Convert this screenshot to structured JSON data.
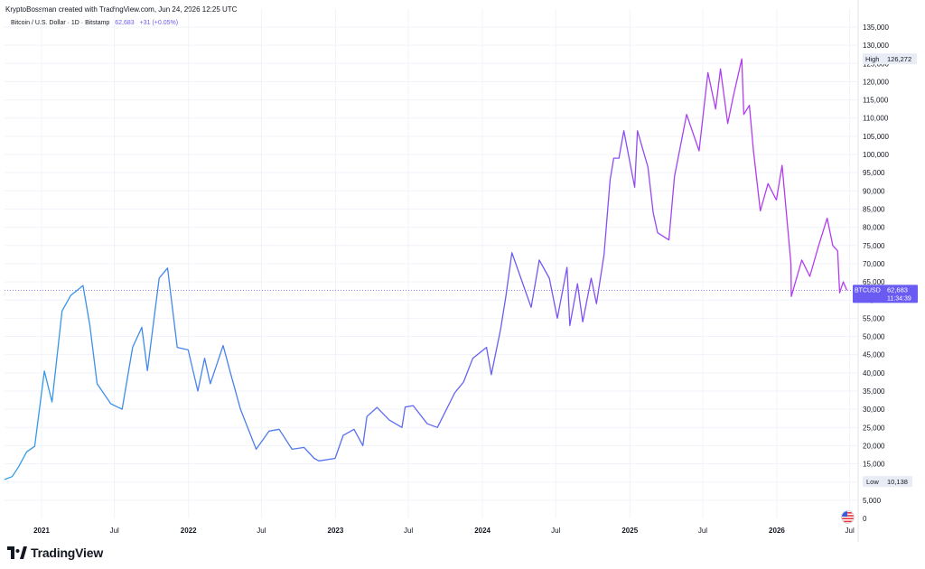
{
  "header": {
    "credit": "KryptoBossman created with TradingView.com, Jun 24, 2026 12:25 UTC",
    "symbol_desc": "Bitcoin / U.S. Dollar · 1D · Bitstamp",
    "last_value": "62,683",
    "change": "+31 (+0.05%)"
  },
  "footer": {
    "brand": "TradingView"
  },
  "price_badge": {
    "label": "BTCUSD",
    "value": "62,683",
    "countdown": "11:34:39"
  },
  "high_badge": {
    "label": "High",
    "value": "126,272"
  },
  "low_badge": {
    "label": "Low",
    "value": "10,138"
  },
  "colors": {
    "line_start": "#2f9ee8",
    "line_mid": "#6a5cf2",
    "line_end": "#b23df0",
    "badge": "#6a5cf2",
    "grid": "#f0f3fa"
  },
  "icons": [
    "tradingview-logo-icon",
    "us-flag-icon"
  ],
  "chart_data": {
    "type": "line",
    "title": "Bitcoin / U.S. Dollar · 1D · Bitstamp",
    "xlabel": "",
    "ylabel": "",
    "y_ticks": [
      0,
      5000,
      10000,
      15000,
      20000,
      25000,
      30000,
      35000,
      40000,
      45000,
      50000,
      55000,
      60000,
      65000,
      70000,
      75000,
      80000,
      85000,
      90000,
      95000,
      100000,
      105000,
      110000,
      115000,
      120000,
      125000,
      130000,
      135000
    ],
    "x_ticks": [
      "2021",
      "Jul",
      "2022",
      "Jul",
      "2023",
      "Jul",
      "2024",
      "Jul",
      "2025",
      "Jul",
      "2026",
      "Jul"
    ],
    "x_tick_dates": [
      "2021-01-01",
      "2021-07-01",
      "2022-01-01",
      "2022-07-01",
      "2023-01-01",
      "2023-07-01",
      "2024-01-01",
      "2024-07-01",
      "2025-01-01",
      "2025-07-01",
      "2026-01-01",
      "2026-07-01"
    ],
    "x_range": [
      "2020-10-01",
      "2026-07-22"
    ],
    "ylim": [
      0,
      135000
    ],
    "grid": true,
    "series": [
      {
        "x": [
          "2020-10-01",
          "2020-10-20",
          "2020-11-05",
          "2020-11-25",
          "2020-12-15",
          "2021-01-08",
          "2021-01-27",
          "2021-02-21",
          "2021-03-14",
          "2021-04-14",
          "2021-05-01",
          "2021-05-19",
          "2021-06-22",
          "2021-07-20",
          "2021-08-15",
          "2021-09-07",
          "2021-09-21",
          "2021-10-20",
          "2021-11-10",
          "2021-12-04",
          "2021-12-31",
          "2022-01-24",
          "2022-02-10",
          "2022-02-24",
          "2022-03-28",
          "2022-04-15",
          "2022-05-10",
          "2022-06-18",
          "2022-07-20",
          "2022-08-14",
          "2022-09-15",
          "2022-10-15",
          "2022-11-09",
          "2022-11-21",
          "2022-12-31",
          "2023-01-20",
          "2023-02-16",
          "2023-03-10",
          "2023-03-20",
          "2023-04-14",
          "2023-05-15",
          "2023-06-15",
          "2023-06-23",
          "2023-07-13",
          "2023-08-17",
          "2023-09-11",
          "2023-10-24",
          "2023-11-15",
          "2023-12-08",
          "2024-01-11",
          "2024-01-23",
          "2024-02-15",
          "2024-02-28",
          "2024-03-14",
          "2024-04-15",
          "2024-05-01",
          "2024-05-21",
          "2024-06-15",
          "2024-07-05",
          "2024-07-29",
          "2024-08-05",
          "2024-08-24",
          "2024-09-06",
          "2024-09-27",
          "2024-10-10",
          "2024-10-29",
          "2024-11-13",
          "2024-11-22",
          "2024-12-05",
          "2024-12-17",
          "2025-01-13",
          "2025-01-20",
          "2025-02-15",
          "2025-02-28",
          "2025-03-11",
          "2025-04-08",
          "2025-04-22",
          "2025-05-22",
          "2025-06-22",
          "2025-07-14",
          "2025-08-02",
          "2025-08-14",
          "2025-09-01",
          "2025-09-15",
          "2025-10-06",
          "2025-10-11",
          "2025-10-25",
          "2025-11-04",
          "2025-11-21",
          "2025-12-10",
          "2025-12-31",
          "2026-01-14",
          "2026-02-05",
          "2026-02-06",
          "2026-03-04",
          "2026-03-24",
          "2026-04-15",
          "2026-05-06",
          "2026-05-20",
          "2026-06-01",
          "2026-06-06",
          "2026-06-15",
          "2026-06-24"
        ],
        "y": [
          10700,
          11500,
          14200,
          18300,
          19800,
          40500,
          32000,
          57000,
          61200,
          64000,
          53000,
          37000,
          31500,
          30000,
          47000,
          52500,
          40600,
          66000,
          68800,
          47000,
          46300,
          35000,
          44000,
          37000,
          47500,
          40000,
          30000,
          19000,
          24000,
          24500,
          19000,
          19500,
          16500,
          15800,
          16500,
          22800,
          24500,
          20000,
          28000,
          30500,
          27000,
          25000,
          30600,
          31000,
          26000,
          25000,
          34500,
          37500,
          44000,
          47000,
          39500,
          52000,
          61000,
          73000,
          63000,
          58000,
          71000,
          66000,
          55000,
          69000,
          53000,
          64500,
          54000,
          66000,
          59000,
          72500,
          93000,
          99000,
          99000,
          106500,
          91000,
          106500,
          96500,
          84000,
          78500,
          76500,
          94000,
          111000,
          101000,
          122500,
          112500,
          123500,
          108500,
          116000,
          126272,
          111000,
          113500,
          101000,
          84500,
          92000,
          87500,
          97000,
          70000,
          61000,
          71000,
          66500,
          75000,
          82500,
          75000,
          73500,
          62000,
          65000,
          62683
        ]
      }
    ]
  }
}
